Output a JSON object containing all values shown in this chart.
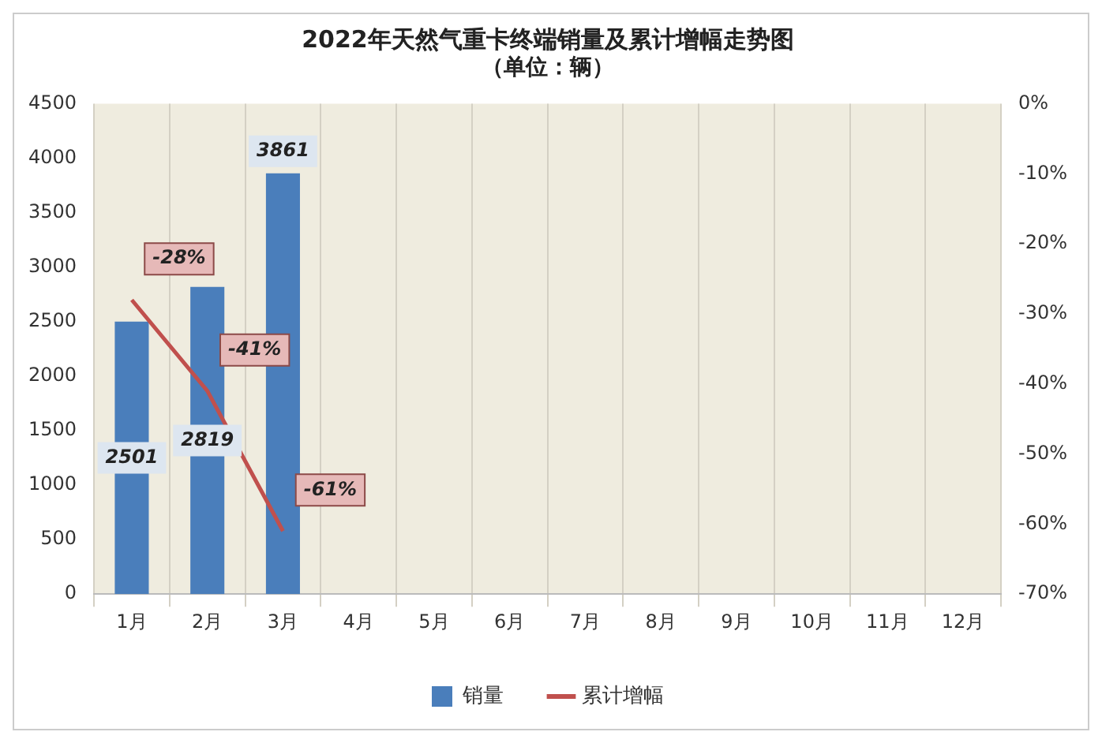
{
  "chart_data": {
    "type": "bar",
    "title": "2022年天然气重卡终端销量及累计增幅走势图",
    "subtitle": "（单位：辆）",
    "categories": [
      "1月",
      "2月",
      "3月",
      "4月",
      "5月",
      "6月",
      "7月",
      "8月",
      "9月",
      "10月",
      "11月",
      "12月"
    ],
    "series": [
      {
        "name": "销量",
        "color": "#4a7ebb",
        "values": [
          2501,
          2819,
          3861,
          null,
          null,
          null,
          null,
          null,
          null,
          null,
          null,
          null
        ],
        "value_labels": [
          "2501",
          "2819",
          "3861",
          null,
          null,
          null,
          null,
          null,
          null,
          null,
          null,
          null
        ]
      },
      {
        "name": "累计增幅",
        "type": "line",
        "axis": "y2",
        "color": "#c0504d",
        "values": [
          -28,
          -41,
          -61,
          null,
          null,
          null,
          null,
          null,
          null,
          null,
          null,
          null
        ],
        "value_labels": [
          "-28%",
          "-41%",
          "-61%",
          null,
          null,
          null,
          null,
          null,
          null,
          null,
          null,
          null
        ]
      }
    ],
    "ylim": [
      0,
      4500
    ],
    "yticks": [
      0,
      500,
      1000,
      1500,
      2000,
      2500,
      3000,
      3500,
      4000,
      4500
    ],
    "y2lim": [
      -70,
      0
    ],
    "y2ticks": [
      {
        "value": 0,
        "label": "0%"
      },
      {
        "value": -10,
        "label": "-10%"
      },
      {
        "value": -20,
        "label": "-20%"
      },
      {
        "value": -30,
        "label": "-30%"
      },
      {
        "value": -40,
        "label": "-40%"
      },
      {
        "value": -50,
        "label": "-50%"
      },
      {
        "value": -60,
        "label": "-60%"
      },
      {
        "value": -70,
        "label": "-70%"
      }
    ],
    "grid": "x",
    "legend": "bottom",
    "marker": "none",
    "line_style": "solid"
  }
}
